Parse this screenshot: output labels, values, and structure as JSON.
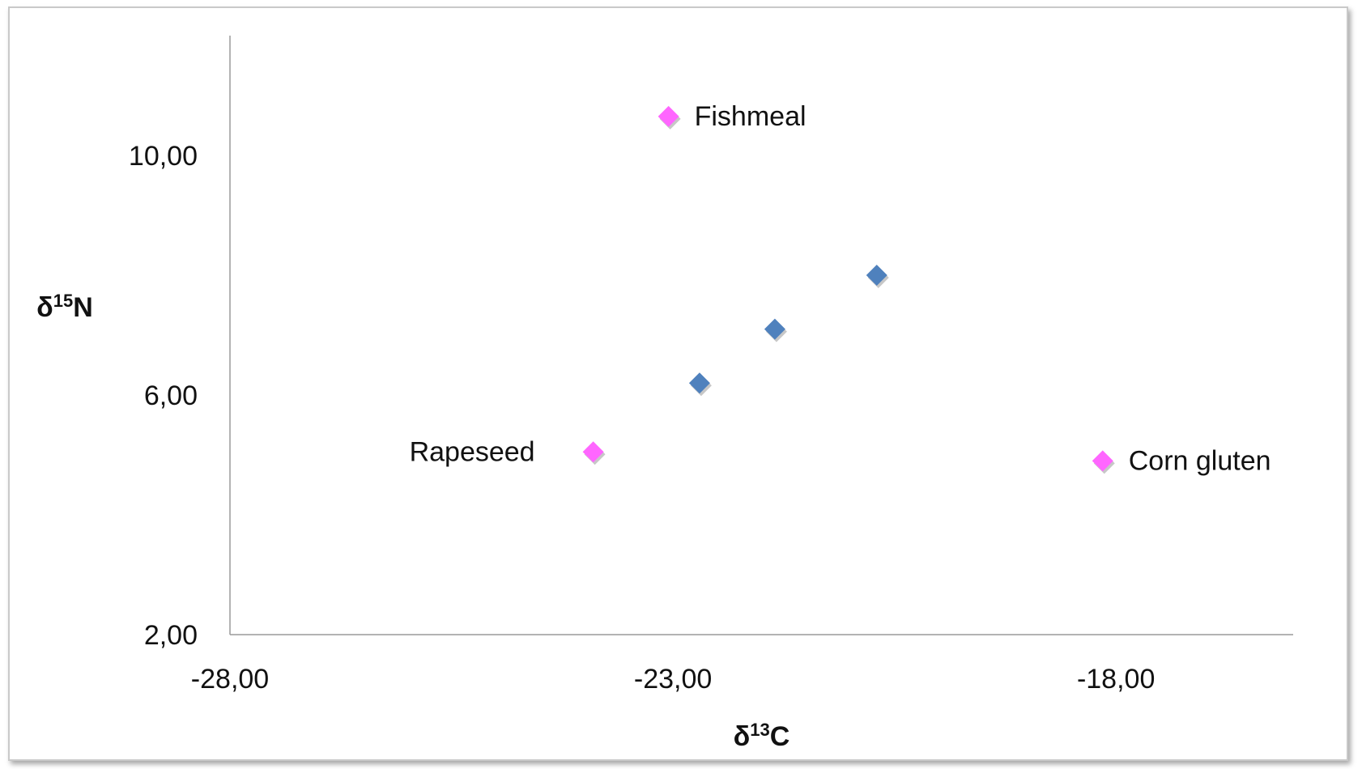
{
  "chart_data": {
    "type": "scatter",
    "title": "",
    "xlabel": {
      "base": "δ",
      "sup": "13",
      "rest": "C"
    },
    "ylabel": {
      "base": "δ",
      "sup": "15",
      "rest": "N"
    },
    "xlim": [
      -28,
      -16
    ],
    "ylim": [
      2,
      12
    ],
    "xticks": [
      {
        "value": -28,
        "label": "-28,00"
      },
      {
        "value": -23,
        "label": "-23,00"
      },
      {
        "value": -18,
        "label": "-18,00"
      }
    ],
    "yticks": [
      {
        "value": 2,
        "label": "2,00"
      },
      {
        "value": 6,
        "label": "6,00"
      },
      {
        "value": 10,
        "label": "10,00"
      }
    ],
    "grid": false,
    "legend": "none",
    "series": [
      {
        "color": "#4f81bd",
        "marker": "diamond",
        "points": [
          {
            "x": -22.7,
            "y": 6.2
          },
          {
            "x": -21.85,
            "y": 7.1
          },
          {
            "x": -20.7,
            "y": 8.0
          }
        ]
      },
      {
        "color": "#ff66ff",
        "marker": "diamond",
        "points": [
          {
            "x": -23.9,
            "y": 5.05,
            "label": "Rapeseed",
            "label_side": "left"
          },
          {
            "x": -23.05,
            "y": 10.65,
            "label": "Fishmeal",
            "label_side": "right"
          },
          {
            "x": -18.15,
            "y": 4.9,
            "label": "Corn gluten",
            "label_side": "right"
          }
        ]
      }
    ]
  }
}
